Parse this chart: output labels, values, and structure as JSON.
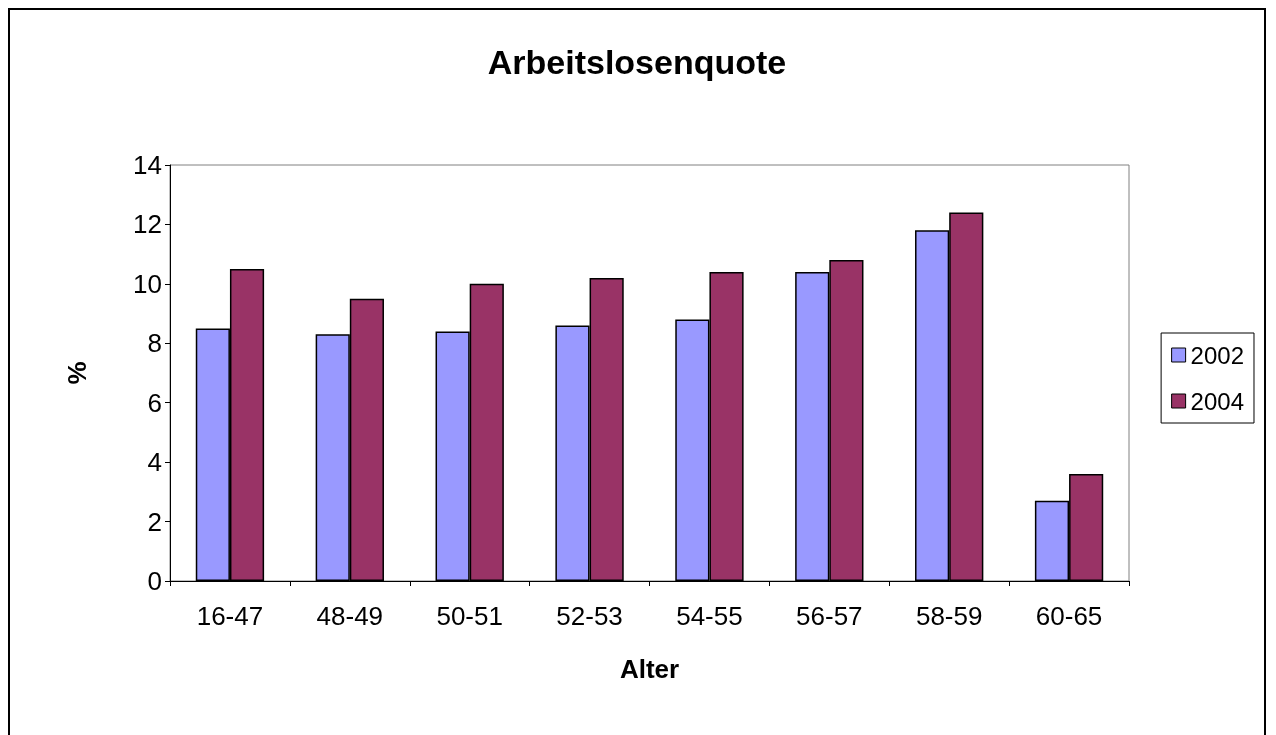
{
  "chart_data": {
    "type": "bar",
    "title": "Arbeitslosenquote",
    "xlabel": "Alter",
    "ylabel": "%",
    "categories": [
      "16-47",
      "48-49",
      "50-51",
      "52-53",
      "54-55",
      "56-57",
      "58-59",
      "60-65"
    ],
    "series": [
      {
        "name": "2002",
        "color": "#9999ff",
        "values": [
          8.5,
          8.3,
          8.4,
          8.6,
          8.8,
          10.4,
          11.8,
          2.7
        ]
      },
      {
        "name": "2004",
        "color": "#993366",
        "values": [
          10.5,
          9.5,
          10.0,
          10.2,
          10.4,
          10.8,
          12.4,
          3.6
        ]
      }
    ],
    "ylim": [
      0,
      14
    ],
    "yticks": [
      0,
      2,
      4,
      6,
      8,
      10,
      12,
      14
    ],
    "grid": false,
    "legend": "right"
  }
}
